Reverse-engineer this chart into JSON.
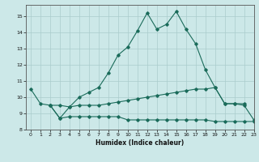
{
  "title": "",
  "xlabel": "Humidex (Indice chaleur)",
  "bg_color": "#cce8e8",
  "grid_color": "#aacccc",
  "line_color": "#1a6b5a",
  "xlim": [
    -0.5,
    23
  ],
  "ylim": [
    8,
    15.7
  ],
  "yticks": [
    8,
    9,
    10,
    11,
    12,
    13,
    14,
    15
  ],
  "xticks": [
    0,
    1,
    2,
    3,
    4,
    5,
    6,
    7,
    8,
    9,
    10,
    11,
    12,
    13,
    14,
    15,
    16,
    17,
    18,
    19,
    20,
    21,
    22,
    23
  ],
  "line1_x": [
    0,
    1,
    2,
    3,
    4,
    5,
    6,
    7,
    8,
    9,
    10,
    11,
    12,
    13,
    14,
    15,
    16,
    17,
    18,
    19,
    20,
    21,
    22
  ],
  "line1_y": [
    10.5,
    9.6,
    9.5,
    8.7,
    9.4,
    10.0,
    10.3,
    10.6,
    11.5,
    12.6,
    13.1,
    14.1,
    15.2,
    14.2,
    14.5,
    15.3,
    14.2,
    13.3,
    11.7,
    10.6,
    9.6,
    9.6,
    9.6
  ],
  "line2_x": [
    2,
    3,
    4,
    5,
    6,
    7,
    8,
    9,
    10,
    11,
    12,
    13,
    14,
    15,
    16,
    17,
    18,
    19,
    20,
    21,
    22,
    23
  ],
  "line2_y": [
    9.5,
    9.5,
    9.4,
    9.5,
    9.5,
    9.5,
    9.6,
    9.7,
    9.8,
    9.9,
    10.0,
    10.1,
    10.2,
    10.3,
    10.4,
    10.5,
    10.5,
    10.6,
    9.6,
    9.6,
    9.5,
    8.6
  ],
  "line3_x": [
    2,
    3,
    4,
    5,
    6,
    7,
    8,
    9,
    10,
    11,
    12,
    13,
    14,
    15,
    16,
    17,
    18,
    19,
    20,
    21,
    22,
    23
  ],
  "line3_y": [
    9.5,
    8.7,
    8.8,
    8.8,
    8.8,
    8.8,
    8.8,
    8.8,
    8.6,
    8.6,
    8.6,
    8.6,
    8.6,
    8.6,
    8.6,
    8.6,
    8.6,
    8.5,
    8.5,
    8.5,
    8.5,
    8.5
  ]
}
